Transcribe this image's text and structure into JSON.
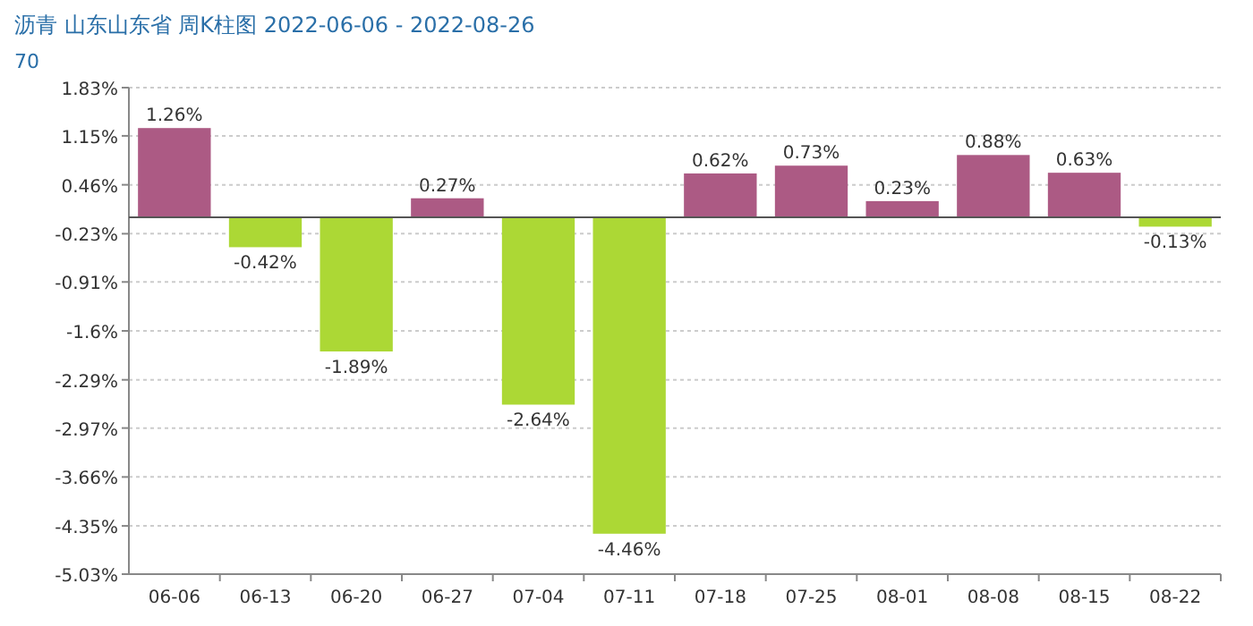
{
  "chart_data": {
    "type": "bar",
    "title": "沥青  山东山东省  周K柱图  2022-06-06 - 2022-08-26",
    "subtitle": "70",
    "categories": [
      "06-06",
      "06-13",
      "06-20",
      "06-27",
      "07-04",
      "07-11",
      "07-18",
      "07-25",
      "08-01",
      "08-08",
      "08-15",
      "08-22"
    ],
    "values": [
      1.26,
      -0.42,
      -1.89,
      0.27,
      -2.64,
      -4.46,
      0.62,
      0.73,
      0.23,
      0.88,
      0.63,
      -0.13
    ],
    "value_labels": [
      "1.26%",
      "-0.42%",
      "-1.89%",
      "0.27%",
      "-2.64%",
      "-4.46%",
      "0.62%",
      "0.73%",
      "0.23%",
      "0.88%",
      "0.63%",
      "-0.13%"
    ],
    "colors": [
      "#ac5a84",
      "#acd835",
      "#acd835",
      "#ac5a84",
      "#acd835",
      "#acd835",
      "#ac5a84",
      "#ac5a84",
      "#ac5a84",
      "#ac5a84",
      "#ac5a84",
      "#acd835"
    ],
    "ylim": [
      -5.03,
      1.83
    ],
    "yticks": [
      {
        "value": 1.83,
        "label": "1.83%"
      },
      {
        "value": 1.15,
        "label": "1.15%"
      },
      {
        "value": 0.46,
        "label": "0.46%"
      },
      {
        "value": -0.23,
        "label": "-0.23%"
      },
      {
        "value": -0.91,
        "label": "-0.91%"
      },
      {
        "value": -1.6,
        "label": "-1.6%"
      },
      {
        "value": -2.29,
        "label": "-2.29%"
      },
      {
        "value": -2.97,
        "label": "-2.97%"
      },
      {
        "value": -3.66,
        "label": "-3.66%"
      },
      {
        "value": -4.35,
        "label": "-4.35%"
      },
      {
        "value": -5.03,
        "label": "-5.03%"
      }
    ],
    "grid": "y"
  }
}
